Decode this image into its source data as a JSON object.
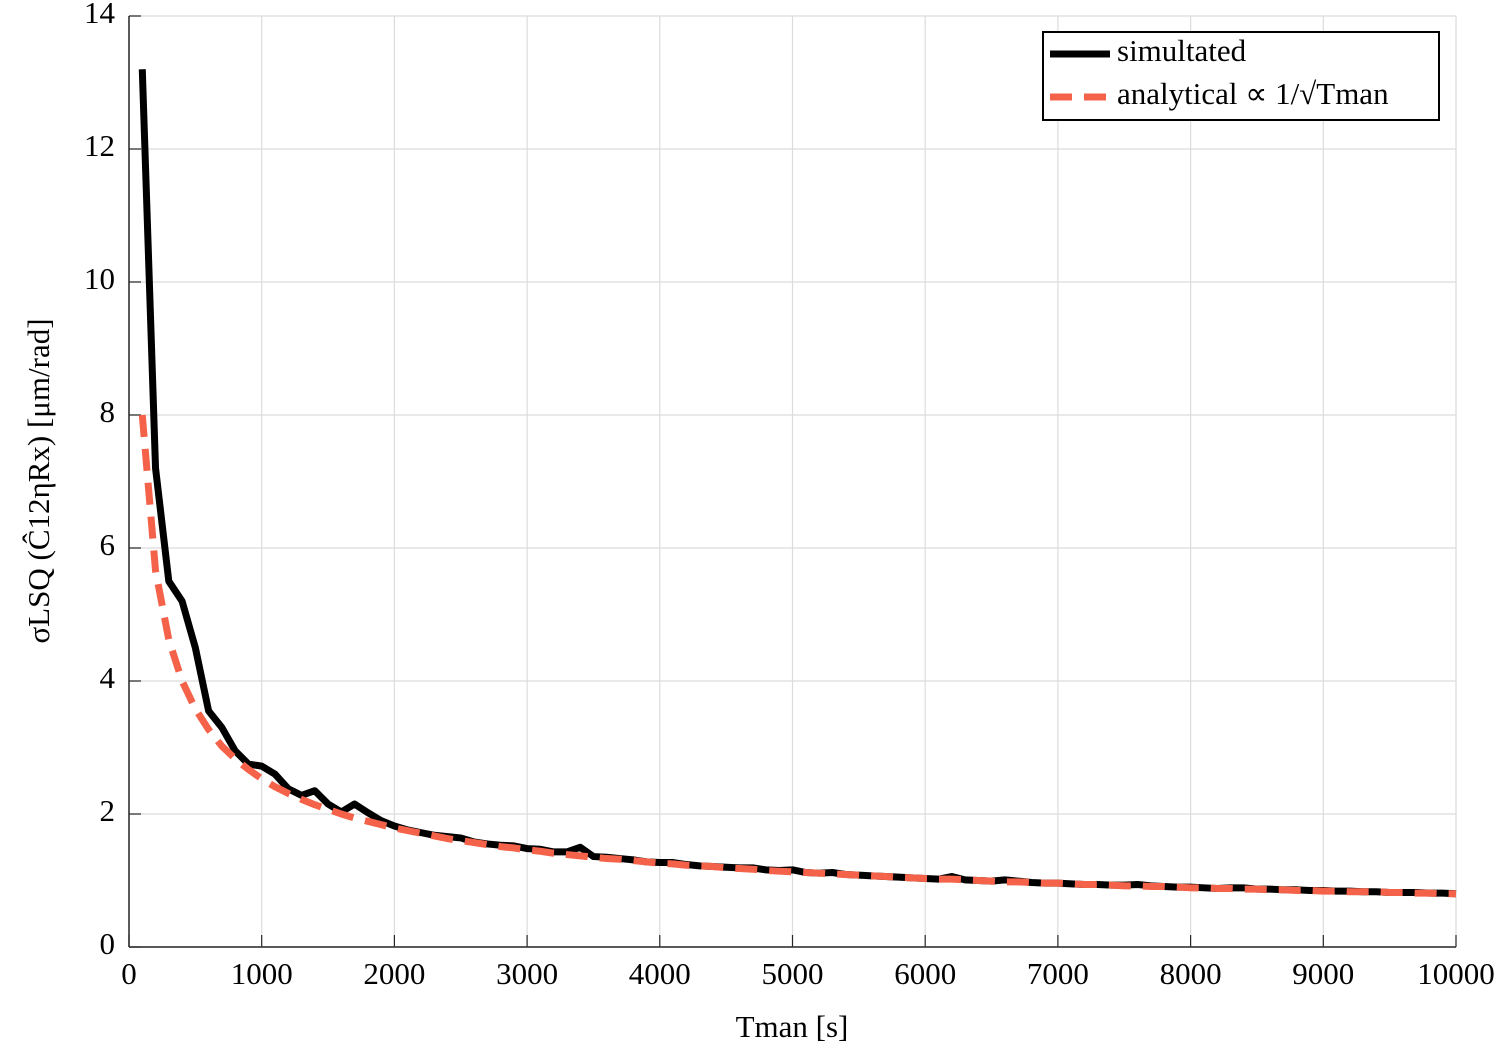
{
  "chart_data": {
    "type": "line",
    "x_label": "Tman [s]",
    "y_label": "σLSQ (Ĉ12ηRx) [μm/rad]",
    "x": [
      100,
      200,
      300,
      400,
      500,
      600,
      700,
      800,
      900,
      1000,
      1100,
      1200,
      1300,
      1400,
      1500,
      1600,
      1700,
      1800,
      1900,
      2000,
      2100,
      2200,
      2300,
      2400,
      2500,
      2600,
      2700,
      2800,
      2900,
      3000,
      3100,
      3200,
      3300,
      3400,
      3500,
      3600,
      3700,
      3800,
      3900,
      4000,
      4100,
      4200,
      4300,
      4400,
      4500,
      4600,
      4700,
      4800,
      4900,
      5000,
      5100,
      5200,
      5300,
      5400,
      5500,
      5600,
      5700,
      5800,
      5900,
      6000,
      6100,
      6200,
      6300,
      6400,
      6500,
      6600,
      6700,
      6800,
      6900,
      7000,
      7100,
      7200,
      7300,
      7400,
      7500,
      7600,
      7700,
      7800,
      7900,
      8000,
      8100,
      8200,
      8300,
      8400,
      8500,
      8600,
      8700,
      8800,
      8900,
      9000,
      9100,
      9200,
      9300,
      9400,
      9500,
      9600,
      9700,
      9800,
      9900,
      10000
    ],
    "series": [
      {
        "name": "simultated",
        "color": "#000000",
        "line_style": "solid",
        "values": [
          13.2,
          7.2,
          5.5,
          5.2,
          4.5,
          3.55,
          3.3,
          2.95,
          2.75,
          2.72,
          2.6,
          2.38,
          2.28,
          2.35,
          2.15,
          2.03,
          2.15,
          2.02,
          1.9,
          1.82,
          1.76,
          1.72,
          1.68,
          1.66,
          1.64,
          1.58,
          1.55,
          1.53,
          1.52,
          1.48,
          1.47,
          1.43,
          1.43,
          1.5,
          1.36,
          1.35,
          1.33,
          1.31,
          1.28,
          1.27,
          1.27,
          1.24,
          1.22,
          1.21,
          1.2,
          1.19,
          1.19,
          1.16,
          1.15,
          1.16,
          1.12,
          1.11,
          1.12,
          1.09,
          1.08,
          1.07,
          1.06,
          1.05,
          1.04,
          1.03,
          1.02,
          1.06,
          1.01,
          1.0,
          0.99,
          1.01,
          0.99,
          0.97,
          0.96,
          0.96,
          0.95,
          0.94,
          0.94,
          0.93,
          0.93,
          0.94,
          0.92,
          0.91,
          0.9,
          0.9,
          0.89,
          0.88,
          0.89,
          0.89,
          0.87,
          0.87,
          0.86,
          0.86,
          0.85,
          0.85,
          0.84,
          0.84,
          0.83,
          0.83,
          0.82,
          0.82,
          0.82,
          0.81,
          0.81,
          0.8
        ]
      },
      {
        "name": "analytical ∝ 1/√Tman",
        "color": "#f5624a",
        "line_style": "dashed",
        "values": [
          8.0,
          5.66,
          4.62,
          4.0,
          3.58,
          3.27,
          3.02,
          2.83,
          2.67,
          2.53,
          2.41,
          2.31,
          2.22,
          2.14,
          2.07,
          2.0,
          1.94,
          1.89,
          1.84,
          1.79,
          1.75,
          1.71,
          1.67,
          1.63,
          1.6,
          1.57,
          1.54,
          1.51,
          1.49,
          1.46,
          1.44,
          1.41,
          1.39,
          1.37,
          1.35,
          1.33,
          1.32,
          1.3,
          1.28,
          1.26,
          1.25,
          1.23,
          1.22,
          1.21,
          1.19,
          1.18,
          1.17,
          1.15,
          1.14,
          1.13,
          1.12,
          1.11,
          1.1,
          1.09,
          1.08,
          1.07,
          1.06,
          1.05,
          1.04,
          1.03,
          1.02,
          1.02,
          1.01,
          1.0,
          0.99,
          0.98,
          0.98,
          0.97,
          0.96,
          0.96,
          0.95,
          0.94,
          0.94,
          0.93,
          0.92,
          0.92,
          0.91,
          0.91,
          0.9,
          0.89,
          0.89,
          0.88,
          0.88,
          0.87,
          0.87,
          0.86,
          0.86,
          0.85,
          0.85,
          0.84,
          0.84,
          0.83,
          0.83,
          0.83,
          0.82,
          0.82,
          0.81,
          0.81,
          0.8,
          0.8
        ]
      }
    ],
    "xlim": [
      0,
      10000
    ],
    "xticks": [
      0,
      1000,
      2000,
      3000,
      4000,
      5000,
      6000,
      7000,
      8000,
      9000,
      10000
    ],
    "ylim": [
      0,
      14
    ],
    "yticks": [
      0,
      2,
      4,
      6,
      8,
      10,
      12,
      14
    ],
    "grid": true,
    "legend": "upper right"
  }
}
